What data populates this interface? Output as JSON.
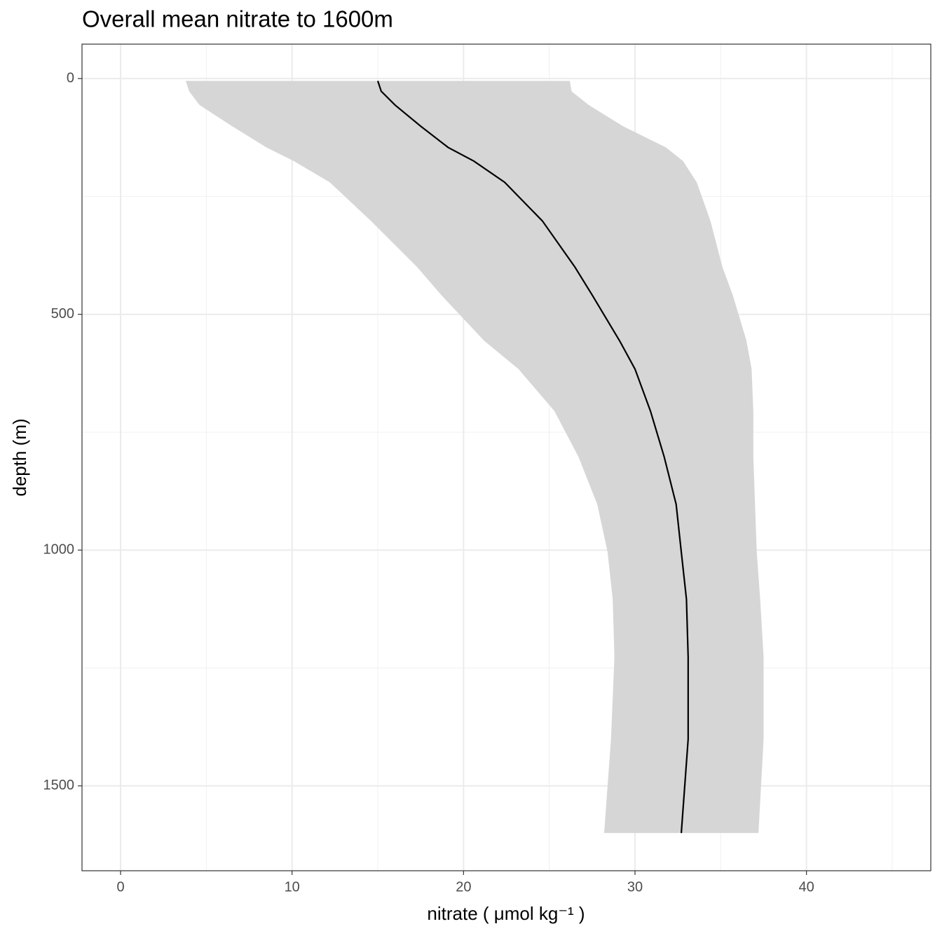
{
  "chart_data": {
    "type": "ribbon-line",
    "title": "Overall mean nitrate to 1600m",
    "x_label": "nitrate ( μmol kg⁻¹ )",
    "y_label": "depth (m)",
    "depth": [
      5,
      27,
      56,
      101,
      146,
      175,
      220,
      302,
      400,
      459,
      556,
      616,
      705,
      802,
      903,
      1004,
      1104,
      1227,
      1401,
      1600
    ],
    "mean": [
      15.0,
      15.2,
      16.0,
      17.5,
      19.1,
      20.6,
      22.4,
      24.6,
      26.5,
      27.5,
      29.1,
      30.0,
      30.9,
      31.7,
      32.4,
      32.7,
      33.0,
      33.1,
      33.1,
      32.7
    ],
    "lower": [
      3.8,
      4.0,
      4.6,
      6.5,
      8.5,
      10.1,
      12.2,
      14.6,
      17.3,
      18.7,
      21.2,
      23.2,
      25.3,
      26.7,
      27.8,
      28.4,
      28.7,
      28.8,
      28.6,
      28.2
    ],
    "upper": [
      26.2,
      26.3,
      27.3,
      29.3,
      31.8,
      32.8,
      33.6,
      34.4,
      35.1,
      35.7,
      36.5,
      36.8,
      36.9,
      36.9,
      37.0,
      37.1,
      37.3,
      37.5,
      37.5,
      37.2
    ],
    "line_color": "#000000",
    "ribbon_color": "#d6d6d6",
    "xlim": [
      -2.25,
      47.25
    ],
    "xticks": [
      0,
      10,
      20,
      30,
      40
    ],
    "minor_xticks": [
      5,
      15,
      25,
      35,
      45
    ],
    "ylim": [
      -73,
      1680
    ],
    "yticks": [
      0,
      500,
      1000,
      1500
    ],
    "minor_yticks": [
      250,
      750,
      1250
    ],
    "y_reversed": true,
    "grid": true
  }
}
